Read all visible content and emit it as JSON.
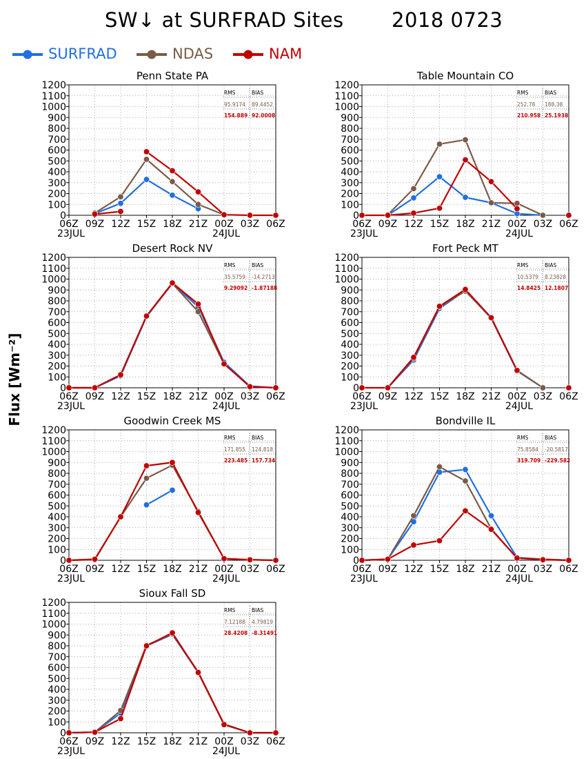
{
  "header": {
    "title_var": "SW↓ at SURFRAD Sites",
    "title_date": "2018 0723"
  },
  "legend": [
    {
      "label": "SURFRAD",
      "color": "#1f6fe0"
    },
    {
      "label": "NDAS",
      "color": "#7b5a47"
    },
    {
      "label": "NAM",
      "color": "#c00000"
    }
  ],
  "ylabel": "Flux [Wm⁻²]",
  "chart_data": [
    {
      "type": "line",
      "title": "Penn State PA",
      "x_ticks": [
        "06Z",
        "09Z",
        "12Z",
        "15Z",
        "18Z",
        "21Z",
        "00Z",
        "03Z",
        "06Z"
      ],
      "date_labels": [
        "23JUL",
        "24JUL"
      ],
      "y_ticks": [
        0,
        100,
        200,
        300,
        400,
        500,
        600,
        700,
        800,
        900,
        1000,
        1100,
        1200
      ],
      "ylim": [
        0,
        1200
      ],
      "grid": true,
      "stats": {
        "header": [
          "RMS",
          "BIAS"
        ],
        "ndas": [
          "95.9174",
          "89.4452"
        ],
        "nam": [
          "154.889",
          "92.0008"
        ]
      },
      "series": [
        {
          "name": "SURFRAD",
          "color": "#1f6fe0",
          "values": [
            null,
            15,
            110,
            330,
            185,
            60,
            null,
            null,
            null
          ]
        },
        {
          "name": "NDAS",
          "color": "#7b5a47",
          "values": [
            null,
            20,
            170,
            515,
            310,
            100,
            5,
            null,
            null
          ]
        },
        {
          "name": "NAM",
          "color": "#c00000",
          "values": [
            null,
            10,
            35,
            null,
            null,
            null,
            null,
            null,
            null
          ]
        },
        {
          "name": "NAM",
          "color": "#c00000",
          "values": [
            null,
            null,
            null,
            585,
            410,
            215,
            5,
            0,
            0
          ]
        }
      ]
    },
    {
      "type": "line",
      "title": "Table Mountain CO",
      "x_ticks": [
        "06Z",
        "09Z",
        "12Z",
        "15Z",
        "18Z",
        "21Z",
        "00Z",
        "03Z",
        "06Z"
      ],
      "date_labels": [
        "23JUL",
        "24JUL"
      ],
      "y_ticks": [
        0,
        100,
        200,
        300,
        400,
        500,
        600,
        700,
        800,
        900,
        1000,
        1100,
        1200
      ],
      "ylim": [
        0,
        1200
      ],
      "grid": true,
      "stats": {
        "header": [
          "RMS",
          "BIAS"
        ],
        "ndas": [
          "252.78",
          "188.38"
        ],
        "nam": [
          "210.958",
          "25.1938"
        ]
      },
      "series": [
        {
          "name": "SURFRAD",
          "color": "#1f6fe0",
          "values": [
            null,
            0,
            160,
            355,
            165,
            115,
            15,
            0,
            null
          ]
        },
        {
          "name": "NDAS",
          "color": "#7b5a47",
          "values": [
            null,
            5,
            245,
            655,
            695,
            115,
            110,
            0,
            null
          ]
        },
        {
          "name": "NAM",
          "color": "#c00000",
          "values": [
            0,
            0,
            20,
            65,
            510,
            310,
            60,
            null,
            0
          ]
        }
      ]
    },
    {
      "type": "line",
      "title": "Desert Rock NV",
      "x_ticks": [
        "06Z",
        "09Z",
        "12Z",
        "15Z",
        "18Z",
        "21Z",
        "00Z",
        "03Z",
        "06Z"
      ],
      "date_labels": [
        "23JUL",
        "24JUL"
      ],
      "y_ticks": [
        0,
        100,
        200,
        300,
        400,
        500,
        600,
        700,
        800,
        900,
        1000,
        1100,
        1200
      ],
      "ylim": [
        0,
        1200
      ],
      "grid": true,
      "stats": {
        "header": [
          "RMS",
          "BIAS"
        ],
        "ndas": [
          "35.5759",
          "-14.2713"
        ],
        "nam": [
          "9.29092",
          "-1.87188"
        ]
      },
      "series": [
        {
          "name": "SURFRAD",
          "color": "#1f6fe0",
          "values": [
            0,
            0,
            110,
            655,
            960,
            745,
            235,
            15,
            0
          ]
        },
        {
          "name": "NDAS",
          "color": "#7b5a47",
          "values": [
            0,
            0,
            120,
            660,
            960,
            700,
            220,
            10,
            0
          ]
        },
        {
          "name": "NAM",
          "color": "#c00000",
          "values": [
            0,
            0,
            120,
            660,
            965,
            770,
            220,
            10,
            0
          ]
        }
      ]
    },
    {
      "type": "line",
      "title": "Fort Peck MT",
      "x_ticks": [
        "06Z",
        "09Z",
        "12Z",
        "15Z",
        "18Z",
        "21Z",
        "00Z",
        "03Z",
        "06Z"
      ],
      "date_labels": [
        "23JUL",
        "24JUL"
      ],
      "y_ticks": [
        0,
        100,
        200,
        300,
        400,
        500,
        600,
        700,
        800,
        900,
        1000,
        1100,
        1200
      ],
      "ylim": [
        0,
        1200
      ],
      "grid": true,
      "stats": {
        "header": [
          "RMS",
          "BIAS"
        ],
        "ndas": [
          "10.5379",
          "8.23828"
        ],
        "nam": [
          "14.8425",
          "12.1807"
        ]
      },
      "series": [
        {
          "name": "SURFRAD",
          "color": "#1f6fe0",
          "values": [
            null,
            0,
            255,
            730,
            895,
            640,
            155,
            0,
            null
          ]
        },
        {
          "name": "NDAS",
          "color": "#7b5a47",
          "values": [
            null,
            0,
            270,
            745,
            890,
            645,
            160,
            0,
            null
          ]
        },
        {
          "name": "NAM",
          "color": "#c00000",
          "values": [
            0,
            0,
            280,
            750,
            905,
            645,
            160,
            null,
            0
          ]
        }
      ]
    },
    {
      "type": "line",
      "title": "Goodwin Creek MS",
      "x_ticks": [
        "06Z",
        "09Z",
        "12Z",
        "15Z",
        "18Z",
        "21Z",
        "00Z",
        "03Z",
        "06Z"
      ],
      "date_labels": [
        "23JUL",
        "24JUL"
      ],
      "y_ticks": [
        0,
        100,
        200,
        300,
        400,
        500,
        600,
        700,
        800,
        900,
        1000,
        1100,
        1200
      ],
      "ylim": [
        0,
        1200
      ],
      "grid": true,
      "stats": {
        "header": [
          "RMS",
          "BIAS"
        ],
        "ndas": [
          "171.855",
          "124.818"
        ],
        "nam": [
          "223.485",
          "157.734"
        ]
      },
      "series": [
        {
          "name": "SURFRAD",
          "color": "#1f6fe0",
          "values": [
            null,
            null,
            null,
            510,
            645,
            null,
            null,
            null,
            null
          ]
        },
        {
          "name": "NDAS",
          "color": "#7b5a47",
          "values": [
            0,
            5,
            400,
            755,
            875,
            450,
            15,
            5,
            0
          ]
        },
        {
          "name": "NAM",
          "color": "#c00000",
          "values": [
            0,
            10,
            400,
            870,
            900,
            440,
            15,
            5,
            0
          ]
        }
      ]
    },
    {
      "type": "line",
      "title": "Bondville IL",
      "x_ticks": [
        "06Z",
        "09Z",
        "12Z",
        "15Z",
        "18Z",
        "21Z",
        "00Z",
        "03Z",
        "06Z"
      ],
      "date_labels": [
        "23JUL",
        "24JUL"
      ],
      "y_ticks": [
        0,
        100,
        200,
        300,
        400,
        500,
        600,
        700,
        800,
        900,
        1000,
        1100,
        1200
      ],
      "ylim": [
        0,
        1200
      ],
      "grid": true,
      "stats": {
        "header": [
          "RMS",
          "BIAS"
        ],
        "ndas": [
          "75.8584",
          "-20.5817"
        ],
        "nam": [
          "319.709",
          "-229.582"
        ]
      },
      "series": [
        {
          "name": "SURFRAD",
          "color": "#1f6fe0",
          "values": [
            0,
            10,
            355,
            810,
            835,
            410,
            25,
            10,
            0
          ]
        },
        {
          "name": "NDAS",
          "color": "#7b5a47",
          "values": [
            0,
            10,
            410,
            860,
            730,
            290,
            20,
            10,
            0
          ]
        },
        {
          "name": "NAM",
          "color": "#c00000",
          "values": [
            0,
            10,
            140,
            180,
            455,
            285,
            20,
            5,
            0
          ]
        }
      ]
    },
    {
      "type": "line",
      "title": "Sioux Fall SD",
      "x_ticks": [
        "06Z",
        "09Z",
        "12Z",
        "15Z",
        "18Z",
        "21Z",
        "00Z",
        "03Z",
        "06Z"
      ],
      "date_labels": [
        "23JUL",
        "24JUL"
      ],
      "y_ticks": [
        0,
        100,
        200,
        300,
        400,
        500,
        600,
        700,
        800,
        900,
        1000,
        1100,
        1200
      ],
      "ylim": [
        0,
        1200
      ],
      "grid": true,
      "stats": {
        "header": [
          "RMS",
          "BIAS"
        ],
        "ndas": [
          "7.12188",
          "4.79819"
        ],
        "nam": [
          "28.4208",
          "-8.31491"
        ]
      },
      "series": [
        {
          "name": "SURFRAD",
          "color": "#1f6fe0",
          "values": [
            0,
            5,
            180,
            800,
            905,
            555,
            80,
            0,
            0
          ]
        },
        {
          "name": "NDAS",
          "color": "#7b5a47",
          "values": [
            0,
            5,
            205,
            805,
            910,
            560,
            80,
            0,
            0
          ]
        },
        {
          "name": "NAM",
          "color": "#c00000",
          "values": [
            0,
            5,
            130,
            800,
            920,
            555,
            75,
            0,
            0
          ]
        }
      ]
    }
  ]
}
